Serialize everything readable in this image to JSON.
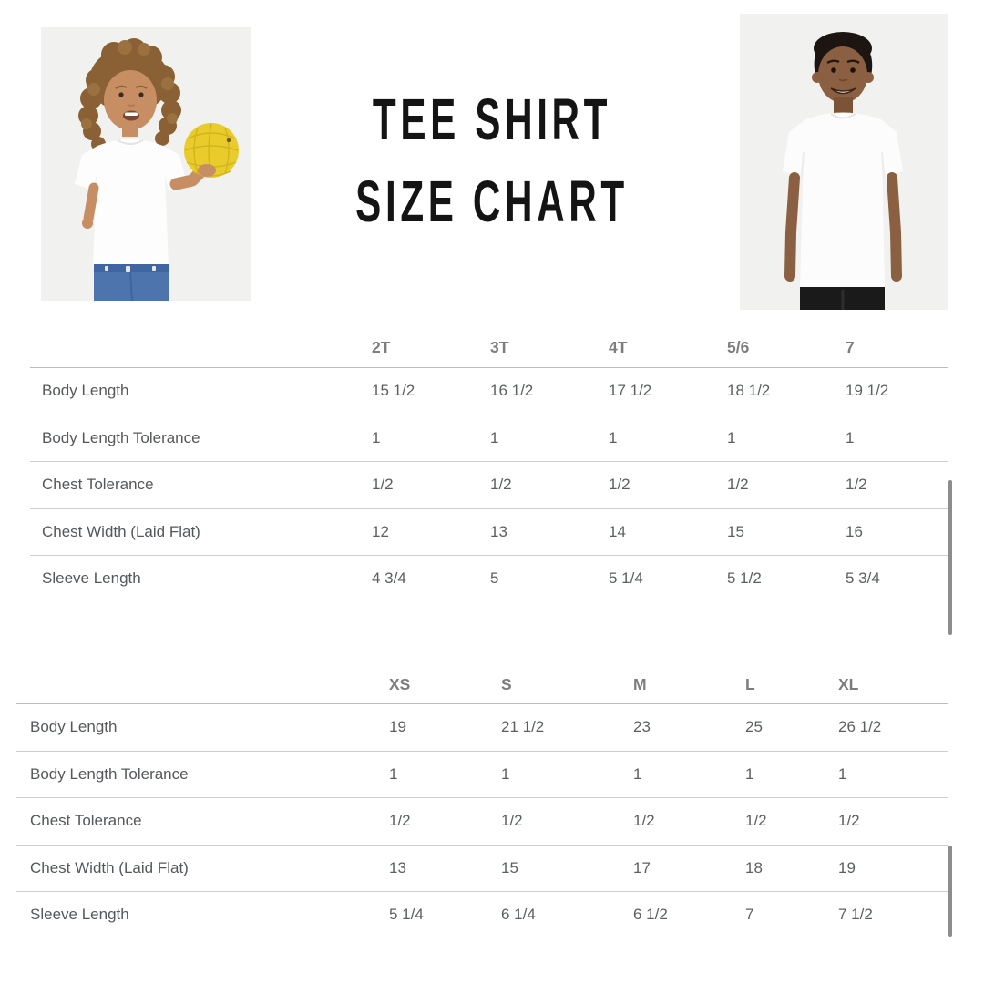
{
  "title": {
    "line1": "TEE SHIRT",
    "line2": "SIZE CHART"
  },
  "photos": {
    "left_alt": "toddler with curly hair in white tee holding yellow ball",
    "right_alt": "boy in white tee smiling"
  },
  "colors": {
    "photo_background": "#f1f1ef",
    "title_text": "#141414",
    "header_text": "#7d7d7d",
    "cell_text": "#5c5f62",
    "row_line": "#cecece",
    "header_line": "#bcbcbc",
    "scrollbar": "#8d8d8d",
    "ball_yellow": "#e9cb2b",
    "jeans_blue": "#4e74ad"
  },
  "tables": [
    {
      "name": "toddler-sizes",
      "columns": [
        "2T",
        "3T",
        "4T",
        "5/6",
        "7"
      ],
      "rows": [
        {
          "label": "Body Length",
          "values": [
            "15 1/2",
            "16 1/2",
            "17 1/2",
            "18 1/2",
            "19 1/2"
          ]
        },
        {
          "label": "Body Length Tolerance",
          "values": [
            "1",
            "1",
            "1",
            "1",
            "1"
          ]
        },
        {
          "label": "Chest Tolerance",
          "values": [
            "1/2",
            "1/2",
            "1/2",
            "1/2",
            "1/2"
          ]
        },
        {
          "label": "Chest Width (Laid Flat)",
          "values": [
            "12",
            "13",
            "14",
            "15",
            "16"
          ]
        },
        {
          "label": "Sleeve Length",
          "values": [
            "4 3/4",
            "5",
            "5 1/4",
            "5 1/2",
            "5 3/4"
          ]
        }
      ]
    },
    {
      "name": "youth-sizes",
      "columns": [
        "XS",
        "S",
        "M",
        "L",
        "XL"
      ],
      "rows": [
        {
          "label": "Body Length",
          "values": [
            "19",
            "21 1/2",
            "23",
            "25",
            "26 1/2"
          ]
        },
        {
          "label": "Body Length Tolerance",
          "values": [
            "1",
            "1",
            "1",
            "1",
            "1"
          ]
        },
        {
          "label": "Chest Tolerance",
          "values": [
            "1/2",
            "1/2",
            "1/2",
            "1/2",
            "1/2"
          ]
        },
        {
          "label": "Chest Width (Laid Flat)",
          "values": [
            "13",
            "15",
            "17",
            "18",
            "19"
          ]
        },
        {
          "label": "Sleeve Length",
          "values": [
            "5 1/4",
            "6 1/4",
            "6 1/2",
            "7",
            "7 1/2"
          ]
        }
      ]
    }
  ],
  "chart_data": [
    {
      "type": "table",
      "title": "Tee Shirt Size Chart — toddler sizes",
      "columns": [
        "",
        "2T",
        "3T",
        "4T",
        "5/6",
        "7"
      ],
      "rows": [
        [
          "Body Length",
          "15 1/2",
          "16 1/2",
          "17 1/2",
          "18 1/2",
          "19 1/2"
        ],
        [
          "Body Length Tolerance",
          "1",
          "1",
          "1",
          "1",
          "1"
        ],
        [
          "Chest Tolerance",
          "1/2",
          "1/2",
          "1/2",
          "1/2",
          "1/2"
        ],
        [
          "Chest Width (Laid Flat)",
          "12",
          "13",
          "14",
          "15",
          "16"
        ],
        [
          "Sleeve Length",
          "4 3/4",
          "5",
          "5 1/4",
          "5 1/2",
          "5 3/4"
        ]
      ]
    },
    {
      "type": "table",
      "title": "Tee Shirt Size Chart — youth sizes",
      "columns": [
        "",
        "XS",
        "S",
        "M",
        "L",
        "XL"
      ],
      "rows": [
        [
          "Body Length",
          "19",
          "21 1/2",
          "23",
          "25",
          "26 1/2"
        ],
        [
          "Body Length Tolerance",
          "1",
          "1",
          "1",
          "1",
          "1"
        ],
        [
          "Chest Tolerance",
          "1/2",
          "1/2",
          "1/2",
          "1/2",
          "1/2"
        ],
        [
          "Chest Width (Laid Flat)",
          "13",
          "15",
          "17",
          "18",
          "19"
        ],
        [
          "Sleeve Length",
          "5 1/4",
          "6 1/4",
          "6 1/2",
          "7",
          "7 1/2"
        ]
      ]
    }
  ]
}
